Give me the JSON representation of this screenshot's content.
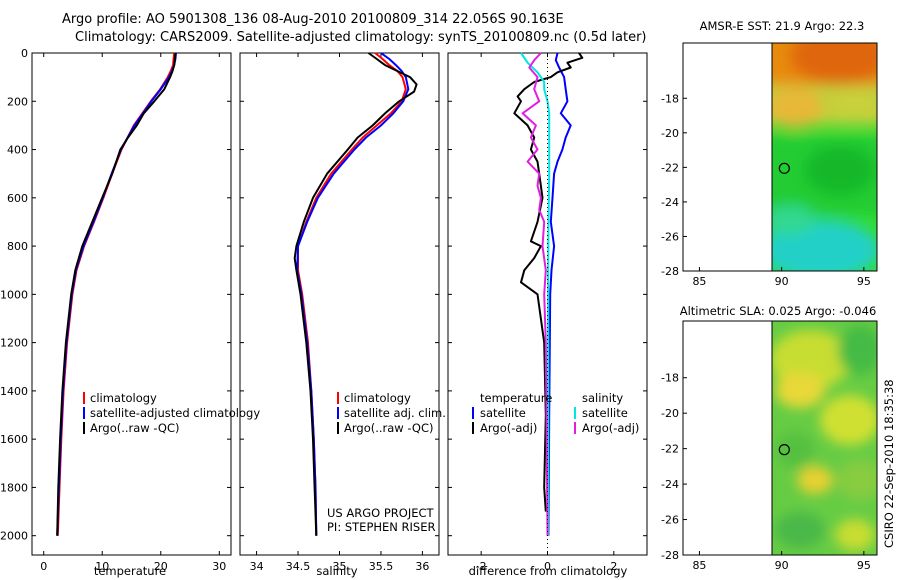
{
  "title_line1": "Argo profile: AO 5901308_136 08-Aug-2010 20100809_314 22.056S 90.163E",
  "title_line2": "Climatology: CARS2009. Satellite-adjusted climatology: synTS_20100809.nc (0.5d later)",
  "credit_project": "US ARGO PROJECT",
  "credit_pi": "PI: STEPHEN RISER",
  "timestamp": "CSIRO 22-Sep-2010 18:35:38",
  "colors": {
    "clim": "#ff0000",
    "sat": "#0000ff",
    "argo": "#000000",
    "sat_sal": "#00e5e5",
    "argo_sal": "#e020e0"
  },
  "chart_data": [
    {
      "id": "temperature",
      "type": "line",
      "xlabel": "temperature",
      "ylabel": "",
      "xlim": [
        -2,
        32
      ],
      "ylim": [
        2080,
        0
      ],
      "xticks": [
        0,
        10,
        20,
        30
      ],
      "yticks": [
        0,
        200,
        400,
        600,
        800,
        1000,
        1200,
        1400,
        1600,
        1800,
        2000
      ],
      "legend": [
        "climatology",
        "satellite-adjusted climatology",
        "Argo(..raw -QC)"
      ],
      "series": [
        {
          "name": "climatology",
          "color": "clim",
          "depth": [
            0,
            25,
            50,
            75,
            100,
            150,
            200,
            300,
            400,
            500,
            600,
            700,
            800,
            900,
            1000,
            1200,
            1400,
            1600,
            1800,
            2000
          ],
          "values": [
            22.3,
            22.2,
            22.1,
            21.7,
            21.2,
            19.9,
            18.3,
            15.4,
            13.3,
            11.7,
            10.2,
            8.6,
            6.9,
            5.6,
            4.9,
            4.0,
            3.4,
            3.0,
            2.7,
            2.4
          ]
        },
        {
          "name": "satellite-adjusted climatology",
          "color": "sat",
          "depth": [
            0,
            25,
            50,
            75,
            100,
            150,
            200,
            300,
            400,
            500,
            600,
            700,
            800,
            900,
            1000,
            1200,
            1400,
            1600,
            1800,
            2000
          ],
          "values": [
            22.6,
            22.5,
            22.3,
            21.9,
            21.4,
            20.0,
            18.4,
            15.5,
            13.2,
            11.6,
            10.1,
            8.5,
            6.8,
            5.5,
            4.8,
            3.9,
            3.3,
            2.9,
            2.6,
            2.3
          ]
        },
        {
          "name": "Argo(..raw -QC)",
          "color": "argo",
          "depth": [
            0,
            25,
            50,
            75,
            100,
            150,
            200,
            250,
            300,
            350,
            400,
            450,
            500,
            600,
            700,
            800,
            900,
            1000,
            1200,
            1400,
            1600,
            1800,
            2000
          ],
          "values": [
            22.5,
            22.4,
            22.3,
            22.0,
            21.6,
            20.6,
            18.9,
            17.1,
            15.9,
            14.4,
            13.1,
            12.4,
            11.7,
            10.0,
            8.3,
            6.6,
            5.4,
            4.7,
            3.8,
            3.2,
            2.8,
            2.5,
            2.3
          ]
        }
      ]
    },
    {
      "id": "salinity",
      "type": "line",
      "xlabel": "salinity",
      "ylabel": "",
      "xlim": [
        33.8,
        36.2
      ],
      "ylim": [
        2080,
        0
      ],
      "xticks": [
        34,
        34.5,
        35,
        35.5,
        36
      ],
      "legend": [
        "climatology",
        "satellite adj. clim.",
        "Argo(..raw -QC)"
      ],
      "series": [
        {
          "name": "climatology",
          "color": "clim",
          "depth": [
            0,
            25,
            50,
            75,
            100,
            150,
            200,
            250,
            300,
            350,
            400,
            500,
            600,
            700,
            800,
            900,
            1000,
            1200,
            1400,
            1600,
            1800,
            2000
          ],
          "values": [
            35.43,
            35.52,
            35.6,
            35.7,
            35.76,
            35.8,
            35.75,
            35.62,
            35.45,
            35.28,
            35.15,
            34.9,
            34.72,
            34.6,
            34.5,
            34.5,
            34.55,
            34.62,
            34.66,
            34.69,
            34.71,
            34.72
          ]
        },
        {
          "name": "satellite adj. clim.",
          "color": "sat",
          "depth": [
            0,
            25,
            50,
            75,
            100,
            150,
            200,
            250,
            300,
            350,
            400,
            500,
            600,
            700,
            800,
            900,
            1000,
            1200,
            1400,
            1600,
            1800,
            2000
          ],
          "values": [
            35.5,
            35.6,
            35.68,
            35.75,
            35.8,
            35.83,
            35.77,
            35.65,
            35.5,
            35.32,
            35.18,
            34.93,
            34.74,
            34.61,
            34.5,
            34.49,
            34.54,
            34.61,
            34.66,
            34.69,
            34.71,
            34.72
          ]
        },
        {
          "name": "Argo(..raw -QC)",
          "color": "argo",
          "depth": [
            0,
            25,
            50,
            75,
            100,
            130,
            160,
            200,
            250,
            300,
            350,
            400,
            500,
            600,
            700,
            800,
            850,
            900,
            1000,
            1200,
            1400,
            1600,
            1800,
            2000
          ],
          "values": [
            35.35,
            35.45,
            35.55,
            35.7,
            35.85,
            35.93,
            35.9,
            35.72,
            35.55,
            35.4,
            35.22,
            35.1,
            34.85,
            34.68,
            34.57,
            34.48,
            34.46,
            34.48,
            34.53,
            34.6,
            34.65,
            34.68,
            34.7,
            34.72
          ]
        }
      ]
    },
    {
      "id": "difference",
      "type": "line",
      "xlabel": "difference from climatology",
      "ylabel": "",
      "xlim": [
        -3,
        3
      ],
      "ylim": [
        2080,
        0
      ],
      "xticks": [
        -2,
        0,
        2
      ],
      "legend": [
        "temperature",
        "satellite",
        "Argo(-adj)",
        "salinity",
        "satellite",
        "Argo(-adj)"
      ],
      "series": [
        {
          "name": "temperature satellite",
          "color": "sat",
          "depth": [
            0,
            30,
            60,
            100,
            150,
            200,
            250,
            300,
            350,
            400,
            450,
            500,
            600,
            700,
            800,
            900,
            1000,
            1500,
            2000
          ],
          "values": [
            0.3,
            0.25,
            0.35,
            0.5,
            0.55,
            0.6,
            0.4,
            0.7,
            0.55,
            0.45,
            0.3,
            0.2,
            0.15,
            0.1,
            0.2,
            0.12,
            0.08,
            0.05,
            0.03
          ]
        },
        {
          "name": "temperature Argo(-adj)",
          "color": "argo",
          "depth": [
            0,
            20,
            40,
            60,
            80,
            100,
            120,
            150,
            180,
            200,
            250,
            300,
            350,
            400,
            450,
            500,
            600,
            700,
            780,
            800,
            850,
            900,
            950,
            1000,
            1200,
            1500,
            1800,
            1900
          ],
          "values": [
            0.95,
            1.05,
            0.6,
            0.7,
            0.3,
            0.1,
            -0.4,
            -0.7,
            -0.9,
            -0.8,
            -1.0,
            -0.6,
            -0.4,
            -0.5,
            -0.3,
            -0.25,
            -0.15,
            -0.3,
            -0.5,
            -0.2,
            -0.4,
            -0.7,
            -0.8,
            -0.3,
            -0.1,
            -0.05,
            -0.1,
            -0.05
          ]
        },
        {
          "name": "salinity satellite",
          "color": "sat_sal",
          "depth": [
            0,
            40,
            80,
            120,
            150,
            200,
            250,
            300,
            400,
            500,
            700,
            900,
            1200,
            1500,
            2000
          ],
          "values": [
            -0.8,
            -0.6,
            -0.3,
            -0.1,
            -0.1,
            0.0,
            0.05,
            0.05,
            0.05,
            0.05,
            0.03,
            0.02,
            0.02,
            0.02,
            0.02
          ]
        },
        {
          "name": "salinity Argo(-adj)",
          "color": "argo_sal",
          "depth": [
            0,
            30,
            60,
            100,
            150,
            200,
            250,
            300,
            350,
            400,
            450,
            500,
            550,
            600,
            650,
            700,
            800,
            900,
            1000,
            1200,
            1500,
            2000
          ],
          "values": [
            -0.2,
            -0.4,
            -0.55,
            -0.3,
            -0.4,
            -0.25,
            -0.75,
            -0.35,
            -0.5,
            -0.3,
            -0.6,
            -0.25,
            -0.3,
            -0.2,
            -0.25,
            -0.1,
            -0.15,
            -0.05,
            -0.1,
            -0.05,
            -0.03,
            0.0
          ]
        }
      ]
    },
    {
      "id": "sst_map",
      "type": "heatmap",
      "title": "AMSR-E SST: 21.9 Argo: 22.3",
      "xticks": [
        85,
        90,
        95
      ],
      "yticks": [
        -18,
        -20,
        -22,
        -24,
        -26,
        -28
      ],
      "xlim": [
        84,
        95.8
      ],
      "ylim": [
        -28,
        -14.8
      ],
      "data_xlim": [
        90,
        95.8
      ],
      "marker": {
        "lon": 90.163,
        "lat": -22.056
      }
    },
    {
      "id": "sla_map",
      "type": "heatmap",
      "title": "Altimetric SLA: 0.025 Argo: -0.046",
      "xticks": [
        85,
        90,
        95
      ],
      "yticks": [
        -18,
        -20,
        -22,
        -24,
        -26,
        -28
      ],
      "xlim": [
        84,
        95.8
      ],
      "ylim": [
        -28,
        -14.8
      ],
      "data_xlim": [
        90,
        95.8
      ],
      "marker": {
        "lon": 90.163,
        "lat": -22.056
      }
    }
  ]
}
